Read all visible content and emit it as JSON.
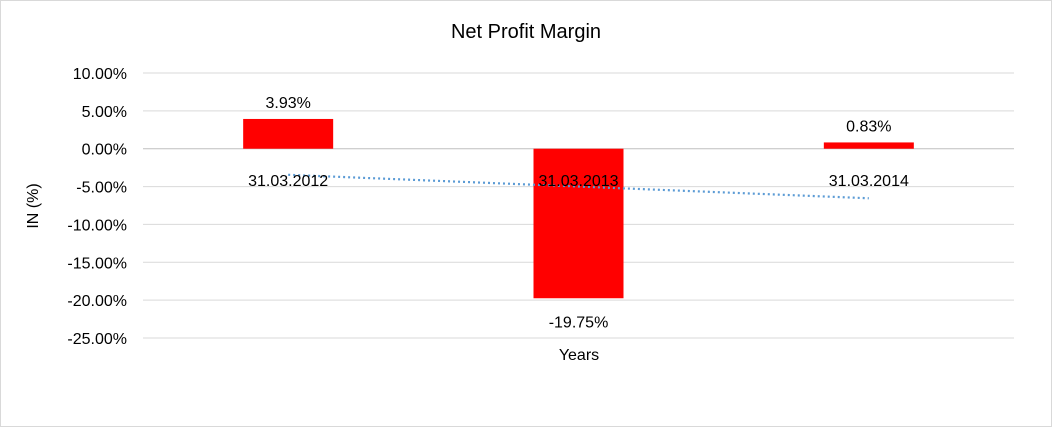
{
  "chart_data": {
    "type": "bar",
    "title": "Net Profit Margin",
    "xlabel": "Years",
    "ylabel": "IN (%)",
    "categories": [
      "31.03.2012",
      "31.03.2013",
      "31.03.2014"
    ],
    "series": [
      {
        "values": [
          3.93,
          -19.75,
          0.83
        ],
        "color": "#ff0000"
      }
    ],
    "data_labels": [
      "3.93%",
      "-19.75%",
      "0.83%"
    ],
    "y_ticks": [
      10,
      5,
      0,
      -5,
      -10,
      -15,
      -20,
      -25
    ],
    "y_tick_labels": [
      "10.00%",
      "5.00%",
      "0.00%",
      "-5.00%",
      "-10.00%",
      "-15.00%",
      "-20.00%",
      "-25.00%"
    ],
    "ylim": [
      -25,
      10
    ],
    "grid": true,
    "trendline": {
      "type": "linear",
      "style": "dotted",
      "color": "#5b9bd5"
    },
    "legend": "none"
  }
}
